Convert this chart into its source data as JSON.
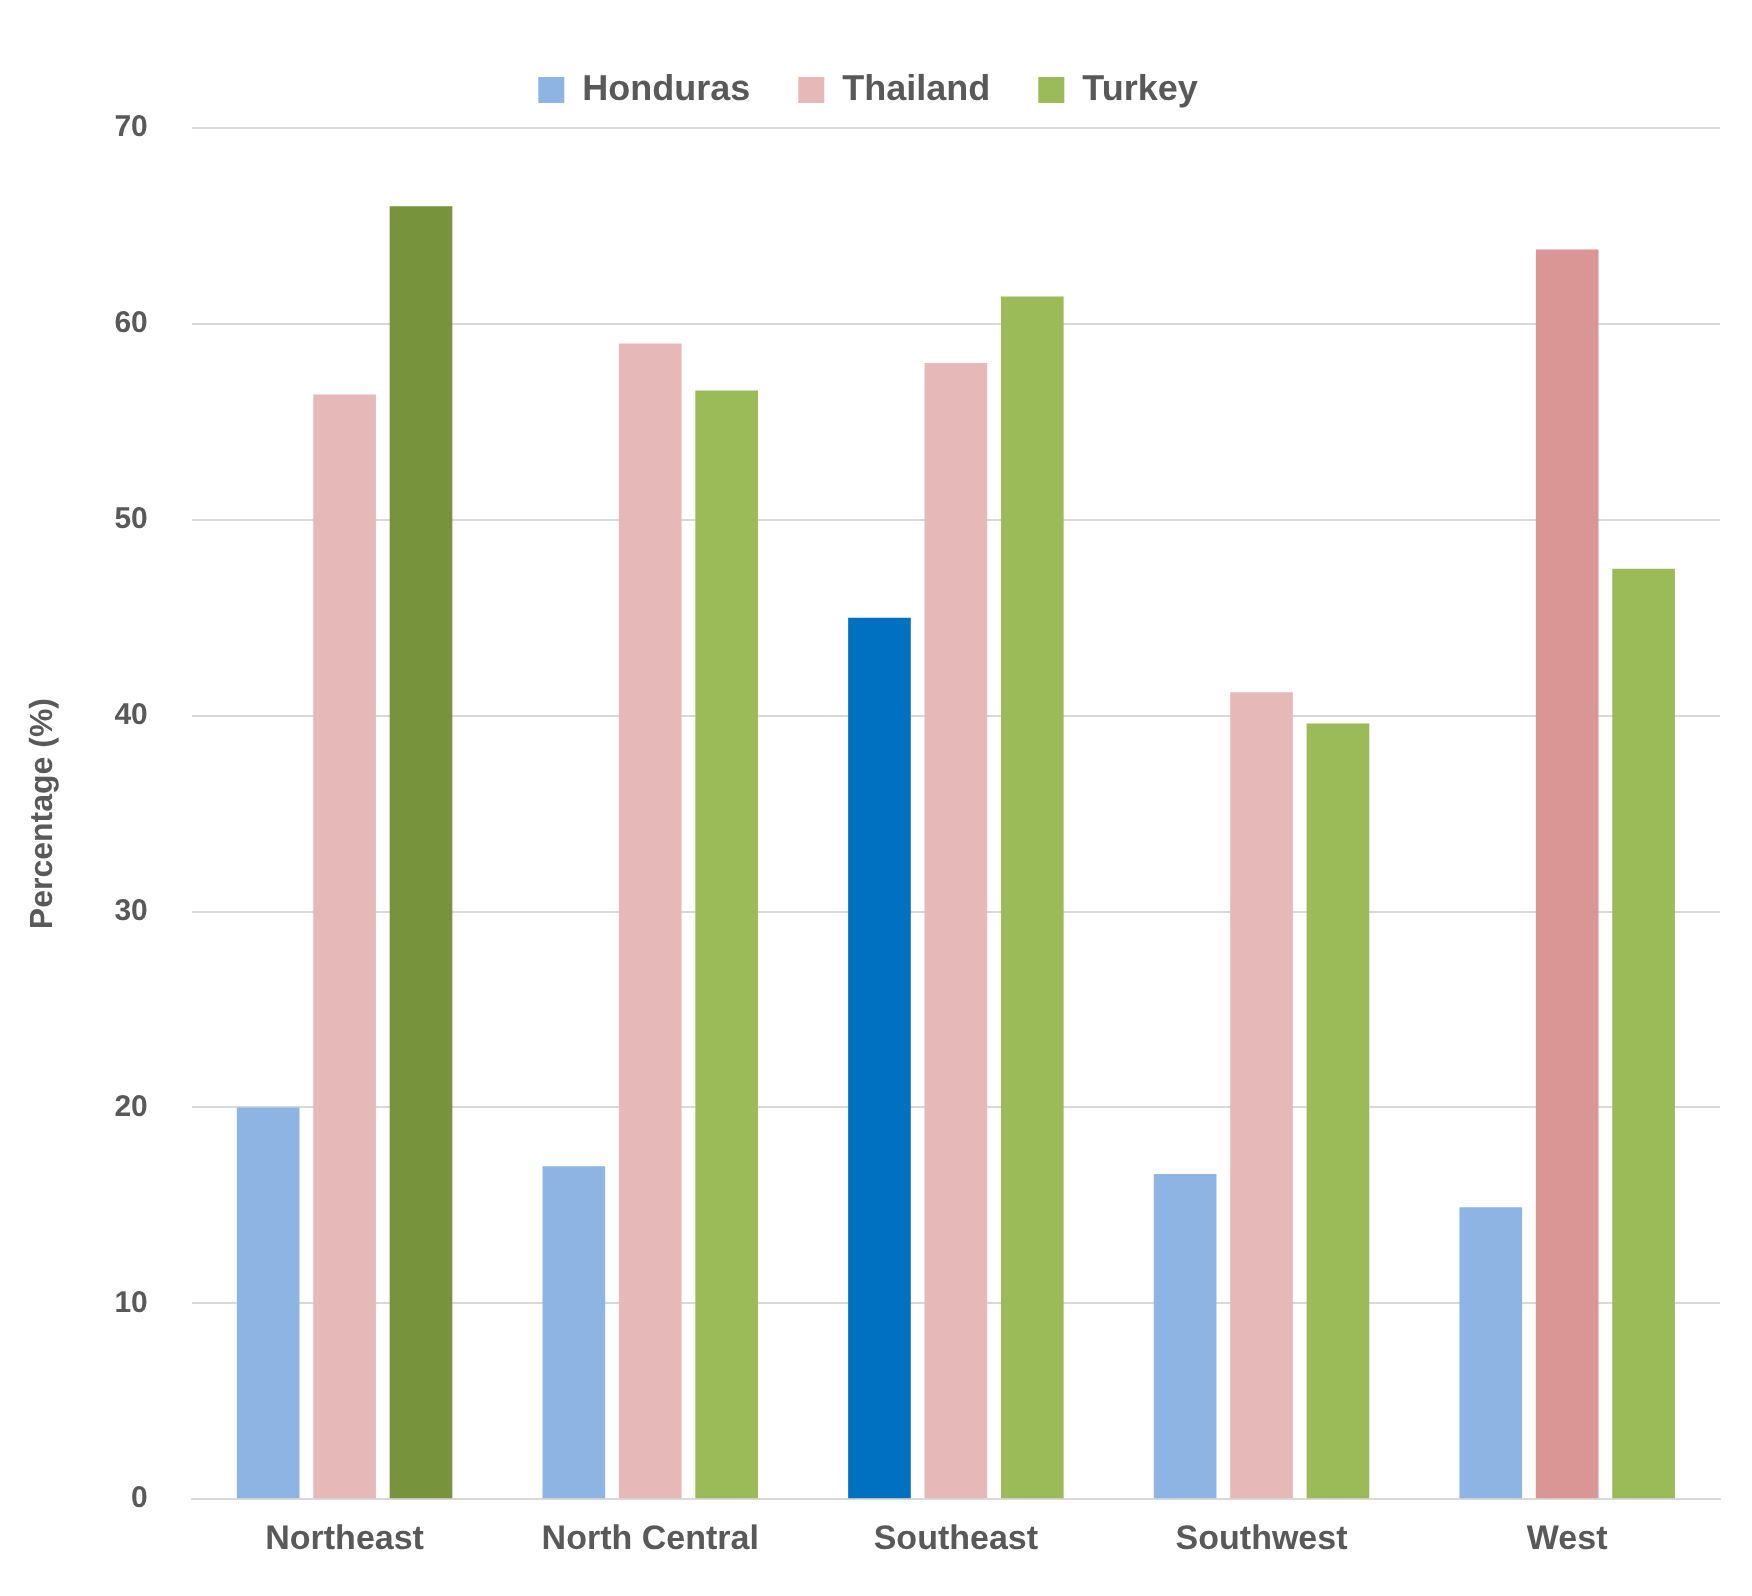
{
  "chart_data": {
    "type": "bar",
    "ylabel": "Percentage (%)",
    "categories": [
      "Northeast",
      "North Central",
      "Southeast",
      "Southwest",
      "West"
    ],
    "series": [
      {
        "name": "Honduras",
        "color": "#8eb4e3",
        "colors": [
          "#8eb4e3",
          "#8eb4e3",
          "#0070c0",
          "#8eb4e3",
          "#8eb4e3"
        ],
        "values": [
          20,
          17,
          45,
          16.6,
          14.9
        ]
      },
      {
        "name": "Thailand",
        "color": "#e6b9b8",
        "colors": [
          "#e6b9b8",
          "#e6b9b8",
          "#e6b9b8",
          "#e6b9b8",
          "#d99694"
        ],
        "values": [
          56.4,
          59,
          58,
          41.2,
          63.8
        ]
      },
      {
        "name": "Turkey",
        "color": "#9bbb59",
        "colors": [
          "#77933c",
          "#9bbb59",
          "#9bbb59",
          "#9bbb59",
          "#9bbb59"
        ],
        "values": [
          66,
          56.6,
          61.4,
          39.6,
          47.5
        ]
      }
    ],
    "ylim": [
      0,
      70
    ],
    "yticks": [
      0,
      10,
      20,
      30,
      40,
      50,
      60,
      70
    ],
    "grid": "y",
    "legend": "top"
  }
}
